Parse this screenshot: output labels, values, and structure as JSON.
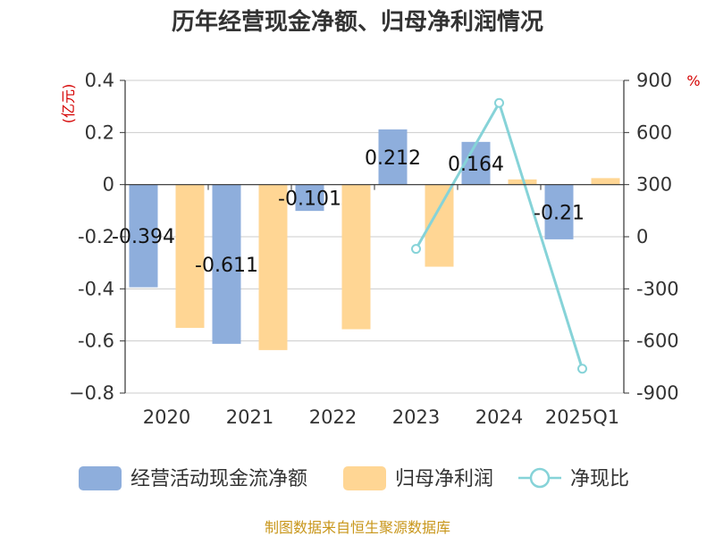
{
  "chart_data": {
    "type": "bar",
    "title": "历年经营现金净额、归母净利润情况",
    "categories": [
      "2020",
      "2021",
      "2022",
      "2023",
      "2024",
      "2025Q1"
    ],
    "series": [
      {
        "name": "经营活动现金流净额",
        "type": "bar",
        "axis": "left",
        "color": "#8eaedc",
        "values": [
          -0.394,
          -0.611,
          -0.101,
          0.212,
          0.164,
          -0.21
        ]
      },
      {
        "name": "归母净利润",
        "type": "bar",
        "axis": "left",
        "color": "#ffd694",
        "values": [
          -0.55,
          -0.635,
          -0.555,
          -0.315,
          0.02,
          0.025
        ]
      },
      {
        "name": "净现比",
        "type": "line",
        "axis": "right",
        "color": "#86d3d8",
        "values": [
          null,
          null,
          null,
          -70,
          770,
          -760
        ]
      }
    ],
    "data_labels": [
      "-0.394",
      "-0.611",
      "-0.101",
      "0.212",
      "0.164",
      "-0.21"
    ],
    "y_left": {
      "unit": "(亿元)",
      "ylim": [
        -0.8,
        0.4
      ],
      "ticks": [
        0.4,
        0.2,
        0,
        -0.2,
        -0.4,
        -0.6,
        -0.8
      ],
      "tick_labels": [
        "0.4",
        "0.2",
        "0",
        "-0.2",
        "-0.4",
        "-0.6",
        "−0.8"
      ]
    },
    "y_right": {
      "unit": "%",
      "ylim": [
        -900,
        900
      ],
      "ticks": [
        900,
        600,
        300,
        0,
        -300,
        -600,
        -900
      ],
      "tick_labels": [
        "900",
        "600",
        "300",
        "0",
        "-300",
        "-600",
        "-900"
      ]
    },
    "grid": true,
    "legend_position": "bottom"
  },
  "source": "制图数据来自恒生聚源数据库"
}
